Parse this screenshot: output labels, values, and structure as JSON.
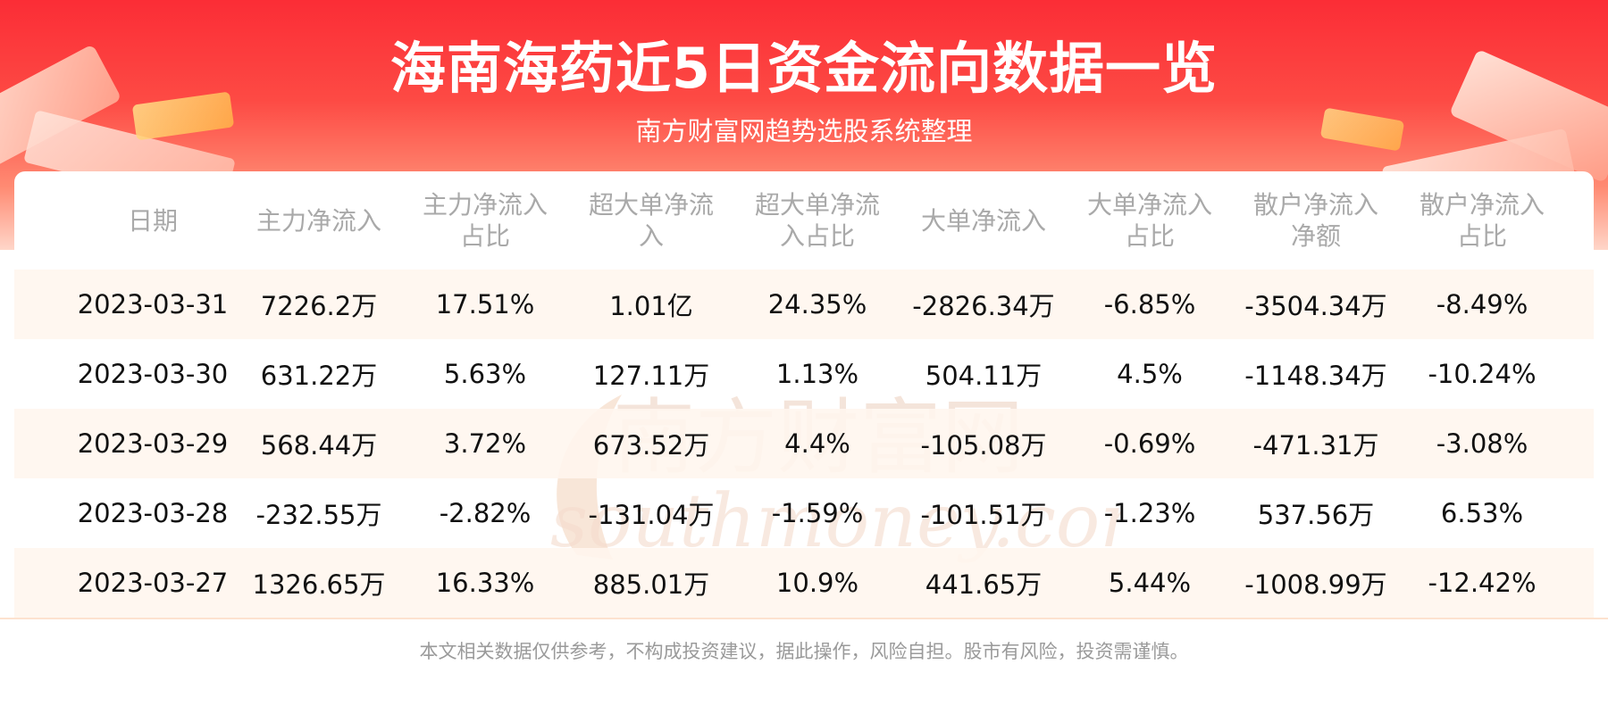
{
  "title": "海南海药近5日资金流向数据一览",
  "subtitle": "南方财富网趋势选股系统整理",
  "table": {
    "headers": [
      [
        "日期"
      ],
      [
        "主力净流入"
      ],
      [
        "主力净流入",
        "占比"
      ],
      [
        "超大单净流",
        "入"
      ],
      [
        "超大单净流",
        "入占比"
      ],
      [
        "大单净流入"
      ],
      [
        "大单净流入",
        "占比"
      ],
      [
        "散户净流入",
        "净额"
      ],
      [
        "散户净流入",
        "占比"
      ]
    ],
    "rows": [
      [
        "2023-03-31",
        "7226.2万",
        "17.51%",
        "1.01亿",
        "24.35%",
        "-2826.34万",
        "-6.85%",
        "-3504.34万",
        "-8.49%"
      ],
      [
        "2023-03-30",
        "631.22万",
        "5.63%",
        "127.11万",
        "1.13%",
        "504.11万",
        "4.5%",
        "-1148.34万",
        "-10.24%"
      ],
      [
        "2023-03-29",
        "568.44万",
        "3.72%",
        "673.52万",
        "4.4%",
        "-105.08万",
        "-0.69%",
        "-471.31万",
        "-3.08%"
      ],
      [
        "2023-03-28",
        "-232.55万",
        "-2.82%",
        "-131.04万",
        "-1.59%",
        "-101.51万",
        "-1.23%",
        "537.56万",
        "6.53%"
      ],
      [
        "2023-03-27",
        "1326.65万",
        "16.33%",
        "885.01万",
        "10.9%",
        "441.65万",
        "5.44%",
        "-1008.99万",
        "-12.42%"
      ]
    ]
  },
  "watermark": {
    "brand_cn": "南方财富网",
    "brand_en": "southmoney.com"
  },
  "disclaimer": "本文相关数据仅供参考，不构成投资建议，据此操作，风险自担。股市有风险，投资需谨慎。",
  "colors": {
    "banner_red": "#fb2d36",
    "row_shade": "#fff6ee",
    "header_text": "#a9a9a9",
    "watermark": "#f0c8a8"
  }
}
